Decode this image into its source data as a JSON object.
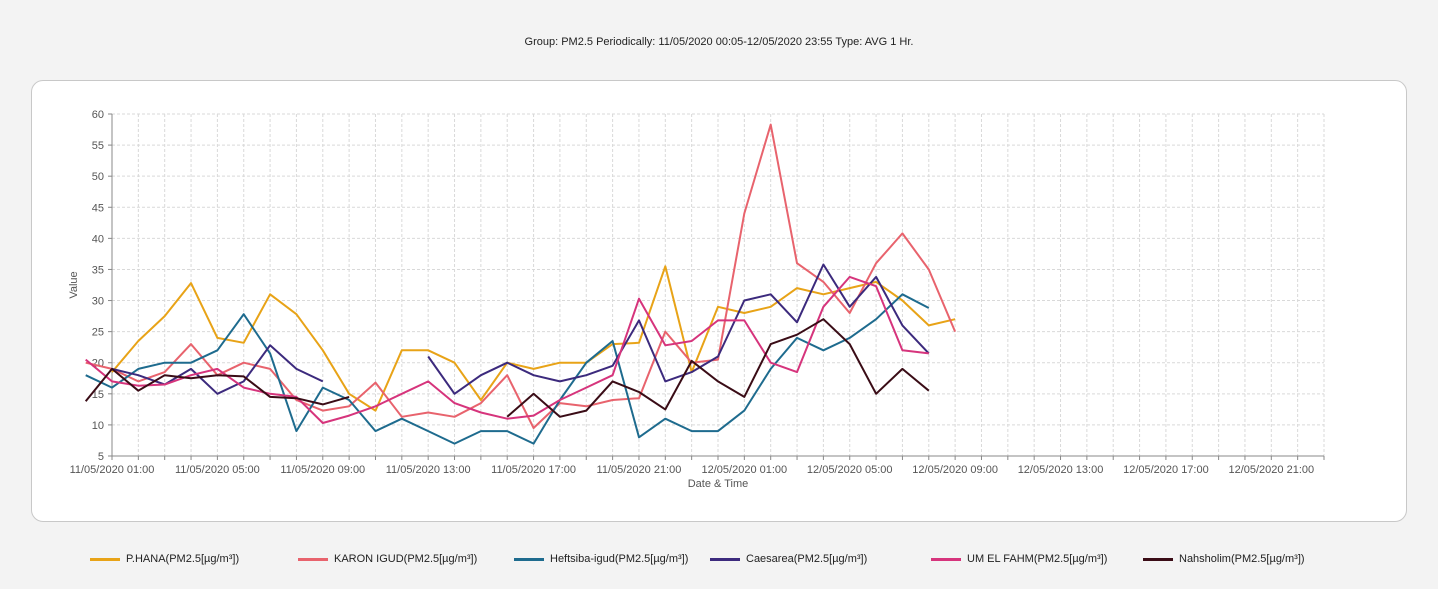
{
  "title": "Group: PM2.5 Periodically: 11/05/2020 00:05-12/05/2020 23:55  Type: AVG 1 Hr.",
  "chart_data": {
    "type": "line",
    "xlabel": "Date & Time",
    "ylabel": "Value",
    "ylim": [
      5,
      60
    ],
    "y_ticks": [
      5,
      10,
      15,
      20,
      25,
      30,
      35,
      40,
      45,
      50,
      55,
      60
    ],
    "x_ticks": [
      "11/05/2020 01:00",
      "11/05/2020 05:00",
      "11/05/2020 09:00",
      "11/05/2020 13:00",
      "11/05/2020 17:00",
      "11/05/2020 21:00",
      "12/05/2020 01:00",
      "12/05/2020 05:00",
      "12/05/2020 09:00",
      "12/05/2020 13:00",
      "12/05/2020 17:00",
      "12/05/2020 21:00"
    ],
    "x_range": [
      "11/05/2020 01:00",
      "12/05/2020 23:00"
    ],
    "grid": true,
    "legend_position": "bottom",
    "series": [
      {
        "name": "P.HANA(PM2.5[µg/m³])",
        "color": "#e8a317",
        "points": [
          [
            "11/05/2020 01:00",
            18.5
          ],
          [
            "11/05/2020 02:00",
            23.5
          ],
          [
            "11/05/2020 03:00",
            27.5
          ],
          [
            "11/05/2020 04:00",
            32.8
          ],
          [
            "11/05/2020 05:00",
            24.0
          ],
          [
            "11/05/2020 06:00",
            23.2
          ],
          [
            "11/05/2020 07:00",
            31.0
          ],
          [
            "11/05/2020 08:00",
            27.8
          ],
          [
            "11/05/2020 09:00",
            22.0
          ],
          [
            "11/05/2020 10:00",
            15.0
          ],
          [
            "11/05/2020 11:00",
            12.3
          ],
          [
            "11/05/2020 12:00",
            22.0
          ],
          [
            "11/05/2020 13:00",
            22.0
          ],
          [
            "11/05/2020 14:00",
            20.0
          ],
          [
            "11/05/2020 15:00",
            14.0
          ],
          [
            "11/05/2020 16:00",
            20.0
          ],
          [
            "11/05/2020 17:00",
            19.0
          ],
          [
            "11/05/2020 18:00",
            20.0
          ],
          [
            "11/05/2020 19:00",
            20.0
          ],
          [
            "11/05/2020 20:00",
            23.0
          ],
          [
            "11/05/2020 21:00",
            23.2
          ],
          [
            "11/05/2020 22:00",
            35.5
          ],
          [
            "11/05/2020 23:00",
            18.5
          ],
          [
            "12/05/2020 00:00",
            29.0
          ],
          [
            "12/05/2020 01:00",
            28.0
          ],
          [
            "12/05/2020 02:00",
            29.0
          ],
          [
            "12/05/2020 03:00",
            32.0
          ],
          [
            "12/05/2020 04:00",
            31.0
          ],
          [
            "12/05/2020 05:00",
            32.0
          ],
          [
            "12/05/2020 06:00",
            33.0
          ],
          [
            "12/05/2020 07:00",
            30.0
          ],
          [
            "12/05/2020 08:00",
            26.0
          ],
          [
            "12/05/2020 09:00",
            27.0
          ]
        ]
      },
      {
        "name": "KARON IGUD(PM2.5[µg/m³])",
        "color": "#e8636d",
        "points": [
          [
            "11/05/2020 00:00",
            20.0
          ],
          [
            "11/05/2020 01:00",
            19.0
          ],
          [
            "11/05/2020 02:00",
            17.0
          ],
          [
            "11/05/2020 03:00",
            18.5
          ],
          [
            "11/05/2020 04:00",
            23.0
          ],
          [
            "11/05/2020 05:00",
            18.0
          ],
          [
            "11/05/2020 06:00",
            20.0
          ],
          [
            "11/05/2020 07:00",
            19.0
          ],
          [
            "11/05/2020 08:00",
            14.0
          ],
          [
            "11/05/2020 09:00",
            12.3
          ],
          [
            "11/05/2020 10:00",
            13.0
          ],
          [
            "11/05/2020 11:00",
            16.8
          ],
          [
            "11/05/2020 12:00",
            11.3
          ],
          [
            "11/05/2020 13:00",
            12.0
          ],
          [
            "11/05/2020 14:00",
            11.3
          ],
          [
            "11/05/2020 15:00",
            13.5
          ],
          [
            "11/05/2020 16:00",
            18.0
          ],
          [
            "11/05/2020 17:00",
            9.5
          ],
          [
            "11/05/2020 18:00",
            13.5
          ],
          [
            "11/05/2020 19:00",
            13.0
          ],
          [
            "11/05/2020 20:00",
            14.0
          ],
          [
            "11/05/2020 21:00",
            14.3
          ],
          [
            "11/05/2020 22:00",
            25.0
          ],
          [
            "11/05/2020 23:00",
            20.0
          ],
          [
            "12/05/2020 00:00",
            20.5
          ],
          [
            "12/05/2020 01:00",
            44.0
          ],
          [
            "12/05/2020 02:00",
            58.3
          ],
          [
            "12/05/2020 03:00",
            36.0
          ],
          [
            "12/05/2020 04:00",
            33.0
          ],
          [
            "12/05/2020 05:00",
            28.0
          ],
          [
            "12/05/2020 06:00",
            36.0
          ],
          [
            "12/05/2020 07:00",
            40.8
          ],
          [
            "12/05/2020 08:00",
            35.0
          ],
          [
            "12/05/2020 09:00",
            25.0
          ]
        ]
      },
      {
        "name": "Heftsiba-igud(PM2.5[µg/m³])",
        "color": "#1e6b8e",
        "points": [
          [
            "11/05/2020 00:00",
            18.0
          ],
          [
            "11/05/2020 01:00",
            16.0
          ],
          [
            "11/05/2020 02:00",
            19.0
          ],
          [
            "11/05/2020 03:00",
            20.0
          ],
          [
            "11/05/2020 04:00",
            20.0
          ],
          [
            "11/05/2020 05:00",
            22.0
          ],
          [
            "11/05/2020 06:00",
            27.8
          ],
          [
            "11/05/2020 07:00",
            21.5
          ],
          [
            "11/05/2020 08:00",
            9.0
          ],
          [
            "11/05/2020 09:00",
            16.0
          ],
          [
            "11/05/2020 10:00",
            14.0
          ],
          [
            "11/05/2020 11:00",
            9.0
          ],
          [
            "11/05/2020 12:00",
            11.0
          ],
          [
            "11/05/2020 13:00",
            9.0
          ],
          [
            "11/05/2020 14:00",
            7.0
          ],
          [
            "11/05/2020 15:00",
            9.0
          ],
          [
            "11/05/2020 16:00",
            9.0
          ],
          [
            "11/05/2020 17:00",
            7.0
          ],
          [
            "11/05/2020 18:00",
            14.0
          ],
          [
            "11/05/2020 19:00",
            20.0
          ],
          [
            "11/05/2020 20:00",
            23.5
          ],
          [
            "11/05/2020 21:00",
            8.0
          ],
          [
            "11/05/2020 22:00",
            11.0
          ],
          [
            "11/05/2020 23:00",
            9.0
          ],
          [
            "12/05/2020 00:00",
            9.0
          ],
          [
            "12/05/2020 01:00",
            12.3
          ],
          [
            "12/05/2020 02:00",
            19.0
          ],
          [
            "12/05/2020 03:00",
            24.0
          ],
          [
            "12/05/2020 04:00",
            22.0
          ],
          [
            "12/05/2020 05:00",
            24.0
          ],
          [
            "12/05/2020 06:00",
            27.0
          ],
          [
            "12/05/2020 07:00",
            31.0
          ],
          [
            "12/05/2020 08:00",
            28.8
          ]
        ]
      },
      {
        "name": "Caesarea(PM2.5[µg/m³])",
        "color": "#3c2a7d",
        "points_segments": [
          [
            [
              "11/05/2020 01:00",
              19.0
            ],
            [
              "11/05/2020 02:00",
              18.0
            ],
            [
              "11/05/2020 03:00",
              16.5
            ],
            [
              "11/05/2020 04:00",
              19.0
            ],
            [
              "11/05/2020 05:00",
              15.0
            ],
            [
              "11/05/2020 06:00",
              17.0
            ],
            [
              "11/05/2020 07:00",
              22.8
            ],
            [
              "11/05/2020 08:00",
              19.0
            ],
            [
              "11/05/2020 09:00",
              17.0
            ]
          ],
          [
            [
              "11/05/2020 13:00",
              21.0
            ],
            [
              "11/05/2020 14:00",
              15.0
            ],
            [
              "11/05/2020 15:00",
              18.0
            ],
            [
              "11/05/2020 16:00",
              20.0
            ],
            [
              "11/05/2020 17:00",
              18.0
            ],
            [
              "11/05/2020 18:00",
              17.0
            ],
            [
              "11/05/2020 19:00",
              18.0
            ],
            [
              "11/05/2020 20:00",
              19.5
            ],
            [
              "11/05/2020 21:00",
              26.8
            ],
            [
              "11/05/2020 22:00",
              17.0
            ],
            [
              "11/05/2020 23:00",
              18.5
            ],
            [
              "12/05/2020 00:00",
              21.0
            ],
            [
              "12/05/2020 01:00",
              30.0
            ],
            [
              "12/05/2020 02:00",
              31.0
            ],
            [
              "12/05/2020 03:00",
              26.5
            ],
            [
              "12/05/2020 04:00",
              35.8
            ],
            [
              "12/05/2020 05:00",
              29.0
            ],
            [
              "12/05/2020 06:00",
              33.8
            ],
            [
              "12/05/2020 07:00",
              26.0
            ],
            [
              "12/05/2020 08:00",
              21.5
            ]
          ]
        ]
      },
      {
        "name": "UM EL FAHM(PM2.5[µg/m³])",
        "color": "#d6347c",
        "points": [
          [
            "11/05/2020 00:00",
            20.5
          ],
          [
            "11/05/2020 01:00",
            17.0
          ],
          [
            "11/05/2020 02:00",
            16.3
          ],
          [
            "11/05/2020 03:00",
            16.5
          ],
          [
            "11/05/2020 04:00",
            18.0
          ],
          [
            "11/05/2020 05:00",
            19.0
          ],
          [
            "11/05/2020 06:00",
            16.0
          ],
          [
            "11/05/2020 07:00",
            15.0
          ],
          [
            "11/05/2020 08:00",
            14.5
          ],
          [
            "11/05/2020 09:00",
            10.3
          ],
          [
            "11/05/2020 10:00",
            11.5
          ],
          [
            "11/05/2020 11:00",
            13.0
          ],
          [
            "11/05/2020 12:00",
            15.0
          ],
          [
            "11/05/2020 13:00",
            17.0
          ],
          [
            "11/05/2020 14:00",
            13.5
          ],
          [
            "11/05/2020 15:00",
            12.0
          ],
          [
            "11/05/2020 16:00",
            11.0
          ],
          [
            "11/05/2020 17:00",
            11.5
          ],
          [
            "11/05/2020 18:00",
            14.0
          ],
          [
            "11/05/2020 19:00",
            16.0
          ],
          [
            "11/05/2020 20:00",
            18.0
          ],
          [
            "11/05/2020 21:00",
            30.3
          ],
          [
            "11/05/2020 22:00",
            22.8
          ],
          [
            "11/05/2020 23:00",
            23.5
          ],
          [
            "12/05/2020 00:00",
            26.8
          ],
          [
            "12/05/2020 01:00",
            26.8
          ],
          [
            "12/05/2020 02:00",
            20.0
          ],
          [
            "12/05/2020 03:00",
            18.5
          ],
          [
            "12/05/2020 04:00",
            29.0
          ],
          [
            "12/05/2020 05:00",
            33.8
          ],
          [
            "12/05/2020 06:00",
            32.3
          ],
          [
            "12/05/2020 07:00",
            22.0
          ],
          [
            "12/05/2020 08:00",
            21.5
          ]
        ]
      },
      {
        "name": "Nahsholim(PM2.5[µg/m³])",
        "color": "#3a0c16",
        "points_segments": [
          [
            [
              "11/05/2020 00:00",
              13.8
            ],
            [
              "11/05/2020 01:00",
              19.0
            ],
            [
              "11/05/2020 02:00",
              15.5
            ],
            [
              "11/05/2020 03:00",
              18.0
            ],
            [
              "11/05/2020 04:00",
              17.5
            ],
            [
              "11/05/2020 05:00",
              18.0
            ],
            [
              "11/05/2020 06:00",
              17.8
            ],
            [
              "11/05/2020 07:00",
              14.5
            ],
            [
              "11/05/2020 08:00",
              14.3
            ],
            [
              "11/05/2020 09:00",
              13.3
            ],
            [
              "11/05/2020 10:00",
              14.5
            ]
          ],
          [
            [
              "11/05/2020 16:00",
              11.3
            ],
            [
              "11/05/2020 17:00",
              15.0
            ],
            [
              "11/05/2020 18:00",
              11.3
            ],
            [
              "11/05/2020 19:00",
              12.3
            ],
            [
              "11/05/2020 20:00",
              17.0
            ],
            [
              "11/05/2020 21:00",
              15.3
            ],
            [
              "11/05/2020 22:00",
              12.5
            ],
            [
              "11/05/2020 23:00",
              20.3
            ],
            [
              "12/05/2020 00:00",
              17.0
            ],
            [
              "12/05/2020 01:00",
              14.5
            ],
            [
              "12/05/2020 02:00",
              23.0
            ],
            [
              "12/05/2020 03:00",
              24.5
            ],
            [
              "12/05/2020 04:00",
              27.0
            ],
            [
              "12/05/2020 05:00",
              23.0
            ],
            [
              "12/05/2020 06:00",
              15.0
            ],
            [
              "12/05/2020 07:00",
              19.0
            ],
            [
              "12/05/2020 08:00",
              15.5
            ]
          ]
        ]
      }
    ]
  }
}
